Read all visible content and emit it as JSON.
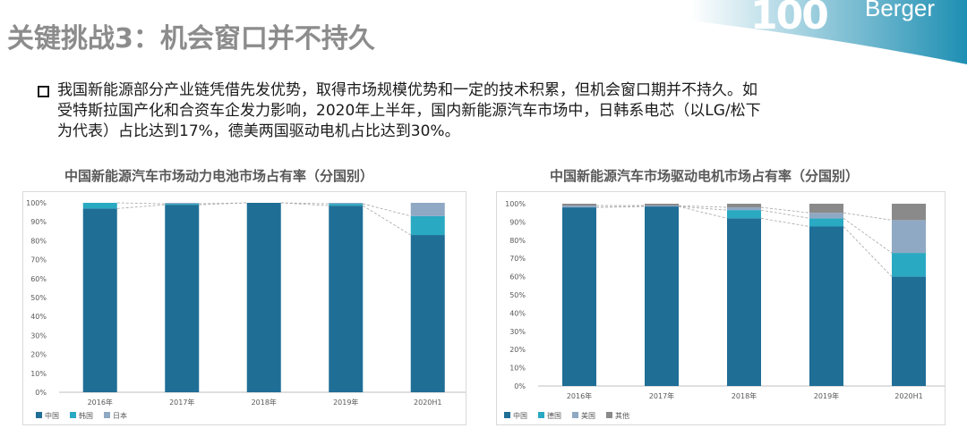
{
  "header": {
    "title": "关键挑战3：机会窗口并不持久",
    "logo_text": "100",
    "brand": "Berger"
  },
  "body": {
    "line1": "我国新能源部分产业链凭借先发优势，取得市场规模优势和一定的技术积累，但机会窗口期并不持久。如",
    "line2": "受特斯拉国产化和合资车企发力影响，2020年上半年，国内新能源汽车市场中，日韩系电芯（以LG/松下",
    "line3": "为代表）占比达到17%，德美两国驱动电机占比达到30%。"
  },
  "colors": {
    "band_start": "#ffffff",
    "band_end": "#1e8fb3",
    "series": [
      "#1f6e96",
      "#29a9c2",
      "#8fa8c4",
      "#8a8a8a"
    ]
  },
  "chart_data": [
    {
      "type": "bar",
      "stacked": true,
      "title": "中国新能源汽车市场动力电池市场占有率（分国别）",
      "categories": [
        "2016年",
        "2017年",
        "2018年",
        "2019年",
        "2020H1"
      ],
      "ylim": [
        0,
        100
      ],
      "yticks": [
        "0%",
        "10%",
        "20%",
        "30%",
        "40%",
        "50%",
        "60%",
        "70%",
        "80%",
        "90%",
        "100%"
      ],
      "series": [
        {
          "name": "中国",
          "values": [
            97,
            99,
            100,
            98.5,
            83
          ]
        },
        {
          "name": "韩国",
          "values": [
            3,
            0.5,
            0,
            1,
            10
          ]
        },
        {
          "name": "日本",
          "values": [
            0,
            0.5,
            0,
            0.5,
            7
          ]
        }
      ]
    },
    {
      "type": "bar",
      "stacked": true,
      "title": "中国新能源汽车市场驱动电机市场占有率（分国别）",
      "categories": [
        "2016年",
        "2017年",
        "2018年",
        "2019年",
        "2020H1"
      ],
      "ylim": [
        0,
        100
      ],
      "yticks": [
        "0%",
        "10%",
        "20%",
        "30%",
        "40%",
        "50%",
        "60%",
        "70%",
        "80%",
        "90%",
        "100%"
      ],
      "series": [
        {
          "name": "中国",
          "values": [
            98,
            98.5,
            92,
            87.5,
            60
          ]
        },
        {
          "name": "德国",
          "values": [
            0,
            0,
            4.5,
            4.5,
            13
          ]
        },
        {
          "name": "美国",
          "values": [
            1,
            0.5,
            1.5,
            3,
            18
          ]
        },
        {
          "name": "其他",
          "values": [
            1,
            1,
            2,
            5,
            9
          ]
        }
      ]
    }
  ]
}
